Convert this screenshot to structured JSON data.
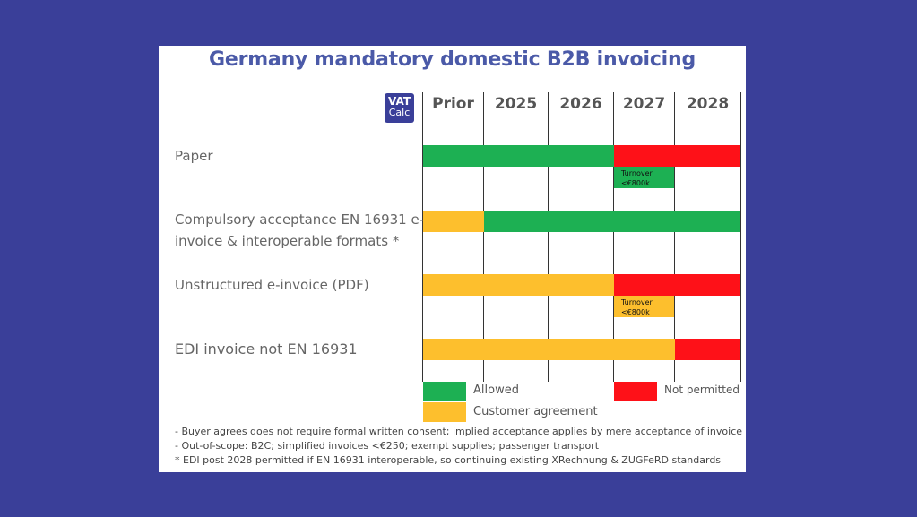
{
  "title": "Germany mandatory domestic B2B invoicing",
  "logo": {
    "line1": "VAT",
    "line2": "Calc"
  },
  "columns": [
    "Prior",
    "2025",
    "2026",
    "2027",
    "2028"
  ],
  "rows": [
    {
      "label_lines": [
        "Paper"
      ]
    },
    {
      "label_lines": [
        "Compulsory acceptance EN 16931 e-",
        "invoice & interoperable formats *"
      ]
    },
    {
      "label_lines": [
        "Unstructured e-invoice (PDF)"
      ]
    },
    {
      "label_lines": [
        "EDI invoice not EN 16931"
      ]
    }
  ],
  "notes": {
    "paper": {
      "line1": "Turnover",
      "line2": "<€800k"
    },
    "pdf": {
      "line1": "Turnover",
      "line2": "<€800k"
    }
  },
  "legend": {
    "allowed": "Allowed",
    "not_permitted": "Not permitted",
    "customer_agreement": "Customer agreement"
  },
  "colors": {
    "allowed": "#1db053",
    "customer_agreement": "#fdbf2d",
    "not_permitted": "#fe1118"
  },
  "footnotes": [
    "- Buyer agrees does not require formal written consent; implied acceptance applies by mere acceptance of invoice",
    "- Out-of-scope: B2C; simplified invoices <€250; exempt supplies; passenger transport",
    "* EDI post 2028 permitted if EN 16931 interoperable, so continuing existing XRechnung & ZUGFeRD standards"
  ]
}
